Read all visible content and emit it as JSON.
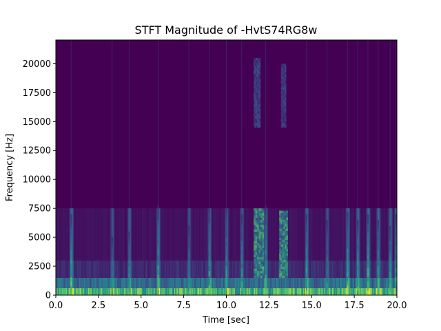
{
  "chart_data": {
    "type": "heatmap",
    "title": "STFT Magnitude of -HvtS74RG8w",
    "xlabel": "Time [sec]",
    "ylabel": "Frequency [Hz]",
    "xlim": [
      0,
      20
    ],
    "ylim": [
      0,
      22050
    ],
    "x_ticks": [
      0.0,
      2.5,
      5.0,
      7.5,
      10.0,
      12.5,
      15.0,
      17.5,
      20.0
    ],
    "x_tick_labels": [
      "0.0",
      "2.5",
      "5.0",
      "7.5",
      "10.0",
      "12.5",
      "15.0",
      "17.5",
      "20.0"
    ],
    "y_ticks": [
      0,
      2500,
      5000,
      7500,
      10000,
      12500,
      15000,
      17500,
      20000
    ],
    "y_tick_labels": [
      "0",
      "2500",
      "5000",
      "7500",
      "10000",
      "12500",
      "15000",
      "17500",
      "20000"
    ],
    "colormap": "viridis",
    "colors": {
      "background": "#440154",
      "low": "#3b528b",
      "mid": "#21918c",
      "high": "#5ec962",
      "peak": "#fde725"
    },
    "bands": [
      {
        "freq": [
          0,
          600
        ],
        "intensity": 0.75
      },
      {
        "freq": [
          600,
          1500
        ],
        "intensity": 0.4
      },
      {
        "freq": [
          1500,
          3000
        ],
        "intensity": 0.15
      },
      {
        "freq": [
          3000,
          7500
        ],
        "intensity": 0.06
      }
    ],
    "onsets": [
      {
        "t": 0.9,
        "f_max": 7000,
        "strength": 0.8
      },
      {
        "t": 3.3,
        "f_max": 5000,
        "strength": 0.5
      },
      {
        "t": 4.3,
        "f_max": 5500,
        "strength": 0.6
      },
      {
        "t": 6.0,
        "f_max": 7800,
        "strength": 0.7
      },
      {
        "t": 7.8,
        "f_max": 6000,
        "strength": 0.5
      },
      {
        "t": 9.0,
        "f_max": 7500,
        "strength": 0.7
      },
      {
        "t": 10.0,
        "f_max": 7500,
        "strength": 0.6
      },
      {
        "t": 10.9,
        "f_max": 7000,
        "strength": 0.6
      },
      {
        "t": 12.3,
        "f_max": 7800,
        "strength": 0.7
      },
      {
        "t": 14.7,
        "f_max": 7000,
        "strength": 0.7
      },
      {
        "t": 15.9,
        "f_max": 6500,
        "strength": 0.5
      },
      {
        "t": 17.1,
        "f_max": 7200,
        "strength": 0.8
      },
      {
        "t": 17.7,
        "f_max": 6500,
        "strength": 0.7
      },
      {
        "t": 18.3,
        "f_max": 7000,
        "strength": 0.8
      },
      {
        "t": 18.9,
        "f_max": 6500,
        "strength": 0.7
      },
      {
        "t": 19.6,
        "f_max": 6000,
        "strength": 0.7
      },
      {
        "t": 19.95,
        "f_max": 7000,
        "strength": 0.8
      }
    ],
    "harmonic_regions": [
      {
        "t": [
          11.6,
          12.2
        ],
        "f": [
          1500,
          7500
        ],
        "strength": 0.75
      },
      {
        "t": [
          13.1,
          13.6
        ],
        "f": [
          1500,
          7300
        ],
        "strength": 0.75
      },
      {
        "t": [
          11.6,
          12.0
        ],
        "f": [
          14500,
          20500
        ],
        "strength": 0.3
      },
      {
        "t": [
          13.2,
          13.5
        ],
        "f": [
          14500,
          20000
        ],
        "strength": 0.3
      }
    ]
  }
}
